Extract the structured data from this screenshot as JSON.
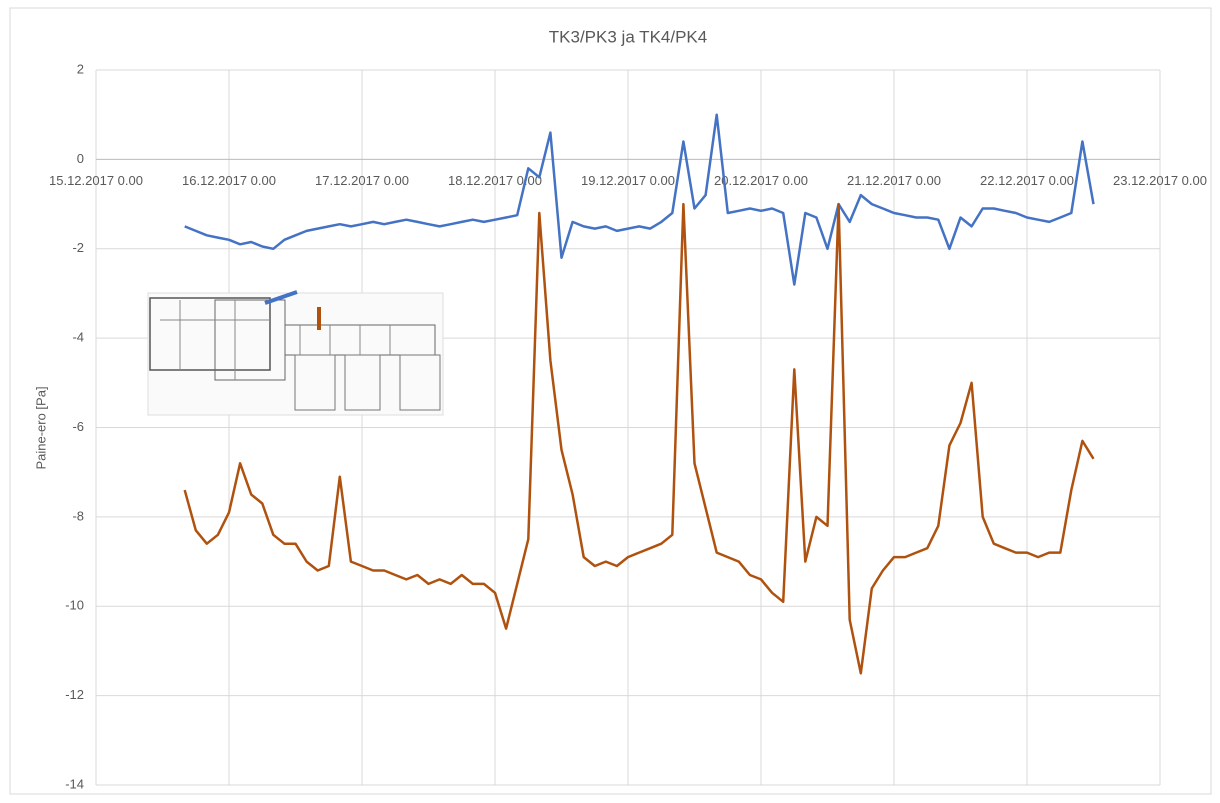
{
  "chart_data": {
    "type": "line",
    "title": "TK3/PK3 ja TK4/PK4",
    "y_label": "Paine-ero [Pa]",
    "x": [
      "2017-12-15T16:00",
      "2017-12-15T18:00",
      "2017-12-15T20:00",
      "2017-12-15T22:00",
      "2017-12-16T00:00",
      "2017-12-16T02:00",
      "2017-12-16T04:00",
      "2017-12-16T06:00",
      "2017-12-16T08:00",
      "2017-12-16T10:00",
      "2017-12-16T12:00",
      "2017-12-16T14:00",
      "2017-12-16T16:00",
      "2017-12-16T18:00",
      "2017-12-16T20:00",
      "2017-12-16T22:00",
      "2017-12-17T00:00",
      "2017-12-17T02:00",
      "2017-12-17T04:00",
      "2017-12-17T06:00",
      "2017-12-17T08:00",
      "2017-12-17T10:00",
      "2017-12-17T12:00",
      "2017-12-17T14:00",
      "2017-12-17T16:00",
      "2017-12-17T18:00",
      "2017-12-17T20:00",
      "2017-12-17T22:00",
      "2017-12-18T00:00",
      "2017-12-18T02:00",
      "2017-12-18T04:00",
      "2017-12-18T06:00",
      "2017-12-18T08:00",
      "2017-12-18T10:00",
      "2017-12-18T12:00",
      "2017-12-18T14:00",
      "2017-12-18T16:00",
      "2017-12-18T18:00",
      "2017-12-18T20:00",
      "2017-12-18T22:00",
      "2017-12-19T00:00",
      "2017-12-19T02:00",
      "2017-12-19T04:00",
      "2017-12-19T06:00",
      "2017-12-19T08:00",
      "2017-12-19T10:00",
      "2017-12-19T12:00",
      "2017-12-19T14:00",
      "2017-12-19T16:00",
      "2017-12-19T18:00",
      "2017-12-19T20:00",
      "2017-12-19T22:00",
      "2017-12-20T00:00",
      "2017-12-20T02:00",
      "2017-12-20T04:00",
      "2017-12-20T06:00",
      "2017-12-20T08:00",
      "2017-12-20T10:00",
      "2017-12-20T12:00",
      "2017-12-20T14:00",
      "2017-12-20T16:00",
      "2017-12-20T18:00",
      "2017-12-20T20:00",
      "2017-12-20T22:00",
      "2017-12-21T00:00",
      "2017-12-21T02:00",
      "2017-12-21T04:00",
      "2017-12-21T06:00",
      "2017-12-21T08:00",
      "2017-12-21T10:00",
      "2017-12-21T12:00",
      "2017-12-21T14:00",
      "2017-12-21T16:00",
      "2017-12-21T18:00",
      "2017-12-21T20:00",
      "2017-12-21T22:00",
      "2017-12-22T00:00",
      "2017-12-22T02:00",
      "2017-12-22T04:00",
      "2017-12-22T06:00",
      "2017-12-22T08:00",
      "2017-12-22T10:00",
      "2017-12-22T12:00"
    ],
    "series": [
      {
        "color": "#4472c4",
        "values": [
          -1.5,
          -1.6,
          -1.7,
          -1.75,
          -1.8,
          -1.9,
          -1.85,
          -1.95,
          -2.0,
          -1.8,
          -1.7,
          -1.6,
          -1.55,
          -1.5,
          -1.45,
          -1.5,
          -1.45,
          -1.4,
          -1.45,
          -1.4,
          -1.35,
          -1.4,
          -1.45,
          -1.5,
          -1.45,
          -1.4,
          -1.35,
          -1.4,
          -1.35,
          -1.3,
          -1.25,
          -0.2,
          -0.4,
          0.6,
          -2.2,
          -1.4,
          -1.5,
          -1.55,
          -1.5,
          -1.6,
          -1.55,
          -1.5,
          -1.55,
          -1.4,
          -1.2,
          0.4,
          -1.1,
          -0.8,
          1.0,
          -1.2,
          -1.15,
          -1.1,
          -1.15,
          -1.1,
          -1.2,
          -2.8,
          -1.2,
          -1.3,
          -2.0,
          -1.0,
          -1.4,
          -0.8,
          -1.0,
          -1.1,
          -1.2,
          -1.25,
          -1.3,
          -1.3,
          -1.35,
          -2.0,
          -1.3,
          -1.5,
          -1.1,
          -1.1,
          -1.15,
          -1.2,
          -1.3,
          -1.35,
          -1.4,
          -1.3,
          -1.2,
          0.4,
          -1.0
        ]
      },
      {
        "color": "#b0520f",
        "values": [
          -7.4,
          -8.3,
          -8.6,
          -8.4,
          -7.9,
          -6.8,
          -7.5,
          -7.7,
          -8.4,
          -8.6,
          -8.6,
          -9.0,
          -9.2,
          -9.1,
          -7.1,
          -9.0,
          -9.1,
          -9.2,
          -9.2,
          -9.3,
          -9.4,
          -9.3,
          -9.5,
          -9.4,
          -9.5,
          -9.3,
          -9.5,
          -9.5,
          -9.7,
          -10.5,
          -9.5,
          -8.5,
          -1.2,
          -4.5,
          -6.5,
          -7.5,
          -8.9,
          -9.1,
          -9.0,
          -9.1,
          -8.9,
          -8.8,
          -8.7,
          -8.6,
          -8.4,
          -1.0,
          -6.8,
          -7.8,
          -8.8,
          -8.9,
          -9.0,
          -9.3,
          -9.4,
          -9.7,
          -9.9,
          -4.7,
          -9.0,
          -8.0,
          -8.2,
          -1.0,
          -10.3,
          -11.5,
          -9.6,
          -9.2,
          -8.9,
          -8.9,
          -8.8,
          -8.7,
          -8.2,
          -6.4,
          -5.9,
          -5.0,
          -8.0,
          -8.6,
          -8.7,
          -8.8,
          -8.8,
          -8.9,
          -8.8,
          -8.8,
          -7.4,
          -6.3,
          -6.7
        ]
      }
    ],
    "xlim": [
      "2017-12-15T00:00",
      "2017-12-23T00:00"
    ],
    "xticks": [
      {
        "value": "2017-12-15T00:00",
        "label": "15.12.2017 0.00"
      },
      {
        "value": "2017-12-16T00:00",
        "label": "16.12.2017 0.00"
      },
      {
        "value": "2017-12-17T00:00",
        "label": "17.12.2017 0.00"
      },
      {
        "value": "2017-12-18T00:00",
        "label": "18.12.2017 0.00"
      },
      {
        "value": "2017-12-19T00:00",
        "label": "19.12.2017 0.00"
      },
      {
        "value": "2017-12-20T00:00",
        "label": "20.12.2017 0.00"
      },
      {
        "value": "2017-12-21T00:00",
        "label": "21.12.2017 0.00"
      },
      {
        "value": "2017-12-22T00:00",
        "label": "22.12.2017 0.00"
      },
      {
        "value": "2017-12-23T00:00",
        "label": "23.12.2017 0.00"
      }
    ],
    "ylim": [
      -14,
      2
    ],
    "yticks": [
      2,
      0,
      -2,
      -4,
      -6,
      -8,
      -10,
      -12,
      -14
    ],
    "grid": true
  }
}
